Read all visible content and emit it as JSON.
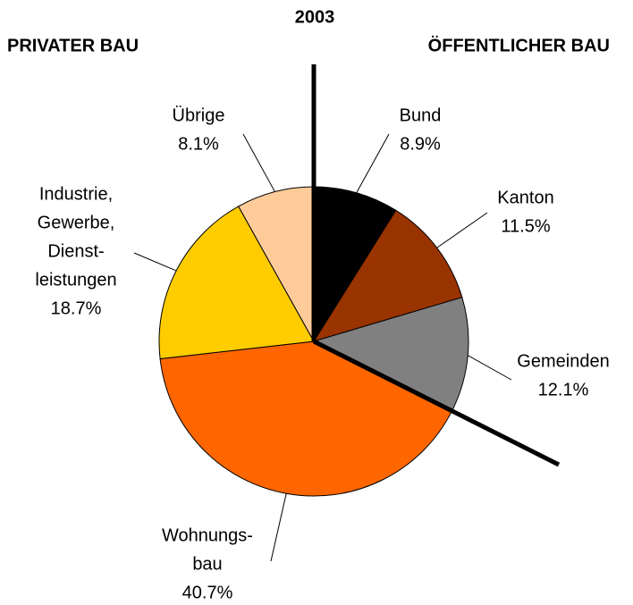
{
  "chart_data": {
    "type": "pie",
    "title": "2003",
    "annotations": [
      "PRIVATER BAU",
      "ÖFFENTLICHER BAU"
    ],
    "categories": [
      [
        "Bund"
      ],
      [
        "Kanton"
      ],
      [
        "Gemeinden"
      ],
      [
        "Wohnungs-",
        "bau"
      ],
      [
        "Industrie,",
        "Gewerbe,",
        "Dienst-",
        "leistungen"
      ],
      [
        "Übrige"
      ]
    ],
    "values": [
      8.9,
      11.5,
      12.1,
      40.7,
      18.7,
      8.1
    ],
    "value_labels": [
      "8.9%",
      "11.5%",
      "12.1%",
      "40.7%",
      "18.7%",
      "8.1%"
    ],
    "colors": [
      "#000000",
      "#993300",
      "#808080",
      "#ff6600",
      "#ffcc00",
      "#ffcc99"
    ]
  }
}
